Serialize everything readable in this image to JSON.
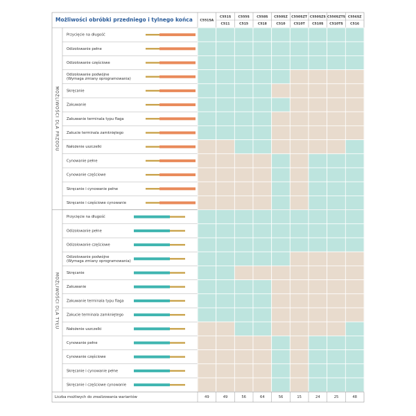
{
  "header": {
    "title": "Możliwości obróbki przedniego i tylnego końca",
    "columns": [
      {
        "top": "C551SA"
      },
      {
        "top": "C551S",
        "bottom": "C511"
      },
      {
        "top": "C555S",
        "bottom": "C515"
      },
      {
        "top": "C558S",
        "bottom": "C518"
      },
      {
        "top": "C550SZ",
        "bottom": "C510"
      },
      {
        "top": "C550SZT",
        "bottom": "C510T"
      },
      {
        "top": "C550SZS",
        "bottom": "C510S"
      },
      {
        "top": "C550SZTS",
        "bottom": "C510TS"
      },
      {
        "top": "C556SZ",
        "bottom": "C516"
      }
    ]
  },
  "sections": [
    {
      "label": "MOŻLIWOŚCI DLA PRZODU",
      "rows": [
        {
          "label": [
            "Przycięcie na długość"
          ],
          "available": [
            true,
            true,
            true,
            true,
            true,
            true,
            true,
            true,
            true
          ]
        },
        {
          "label": [
            "Odizolowanie pełne"
          ],
          "available": [
            true,
            true,
            true,
            true,
            true,
            true,
            true,
            true,
            true
          ]
        },
        {
          "label": [
            "Odizolowanie częściowe"
          ],
          "available": [
            true,
            true,
            true,
            true,
            true,
            true,
            true,
            true,
            true
          ]
        },
        {
          "label": [
            "Odizolowanie podwójne",
            "(Wymaga zmiany oprogramowania)"
          ],
          "available": [
            true,
            true,
            true,
            true,
            true,
            false,
            false,
            false,
            false
          ]
        },
        {
          "label": [
            "Skręcanie"
          ],
          "available": [
            true,
            true,
            true,
            true,
            false,
            false,
            false,
            false,
            false
          ]
        },
        {
          "label": [
            "Zakuwanie"
          ],
          "available": [
            true,
            true,
            true,
            true,
            true,
            false,
            false,
            false,
            false
          ]
        },
        {
          "label": [
            "Zakuwanie terminala typu flaga"
          ],
          "available": [
            true,
            true,
            true,
            true,
            false,
            false,
            false,
            false,
            false
          ]
        },
        {
          "label": [
            "Zakucie terminala zamkniętego"
          ],
          "available": [
            true,
            true,
            true,
            true,
            false,
            false,
            false,
            false,
            false
          ]
        },
        {
          "label": [
            "Nałożenie uszczelki"
          ],
          "available": [
            false,
            false,
            true,
            true,
            false,
            false,
            false,
            false,
            true
          ]
        },
        {
          "label": [
            "Cynowanie pełne"
          ],
          "available": [
            false,
            false,
            false,
            false,
            true,
            false,
            true,
            true,
            true
          ]
        },
        {
          "label": [
            "Cynowanie częściowe"
          ],
          "available": [
            false,
            false,
            false,
            false,
            true,
            false,
            true,
            true,
            true
          ]
        },
        {
          "label": [
            "Skręcanie i cynowanie pełne"
          ],
          "available": [
            false,
            false,
            false,
            false,
            true,
            false,
            true,
            true,
            true
          ]
        },
        {
          "label": [
            "Skręcanie i częściowe cynowanie"
          ],
          "available": [
            false,
            false,
            false,
            false,
            true,
            false,
            true,
            true,
            true
          ]
        }
      ]
    },
    {
      "label": "MOŻLIWOŚCI DLA TYŁU",
      "rows": [
        {
          "label": [
            "Przycięcie na długość"
          ],
          "available": [
            true,
            true,
            true,
            true,
            true,
            true,
            true,
            true,
            true
          ]
        },
        {
          "label": [
            "Odizolowanie pełne"
          ],
          "available": [
            true,
            true,
            true,
            true,
            true,
            true,
            true,
            true,
            true
          ]
        },
        {
          "label": [
            "Odizolowanie częściowe"
          ],
          "available": [
            true,
            true,
            true,
            true,
            true,
            true,
            true,
            true,
            true
          ]
        },
        {
          "label": [
            "Odizolowanie podwójne",
            "(Wymaga zmiany oprogramowania)"
          ],
          "available": [
            true,
            true,
            true,
            true,
            true,
            false,
            false,
            false,
            false
          ]
        },
        {
          "label": [
            "Skręcanie"
          ],
          "available": [
            true,
            true,
            false,
            false,
            false,
            false,
            false,
            false,
            false
          ]
        },
        {
          "label": [
            "Zakuwanie"
          ],
          "available": [
            true,
            true,
            true,
            true,
            false,
            false,
            false,
            false,
            false
          ]
        },
        {
          "label": [
            "Zakuwanie terminala typu flaga"
          ],
          "available": [
            true,
            true,
            true,
            true,
            false,
            false,
            false,
            false,
            false
          ]
        },
        {
          "label": [
            "Zakucie terminala zamkniętego"
          ],
          "available": [
            true,
            true,
            true,
            true,
            false,
            false,
            false,
            false,
            false
          ]
        },
        {
          "label": [
            "Nałożenie uszczelki"
          ],
          "available": [
            false,
            false,
            true,
            true,
            false,
            false,
            false,
            false,
            true
          ]
        },
        {
          "label": [
            "Cynowanie pełne"
          ],
          "available": [
            false,
            false,
            false,
            false,
            true,
            false,
            true,
            true,
            true
          ]
        },
        {
          "label": [
            "Cynowanie częściowe"
          ],
          "available": [
            false,
            false,
            false,
            false,
            true,
            false,
            true,
            true,
            true
          ]
        },
        {
          "label": [
            "Skręcanie i cynowanie pełne"
          ],
          "available": [
            false,
            false,
            false,
            false,
            true,
            false,
            true,
            true,
            true
          ]
        },
        {
          "label": [
            "Skręcanie i częściowe cynowanie"
          ],
          "available": [
            false,
            false,
            false,
            false,
            true,
            false,
            true,
            true,
            true
          ]
        }
      ]
    }
  ],
  "footer": {
    "label": "Liczba możliwych do zrealizowania wariantów",
    "values": [
      49,
      49,
      56,
      64,
      56,
      15,
      24,
      25,
      48
    ]
  }
}
